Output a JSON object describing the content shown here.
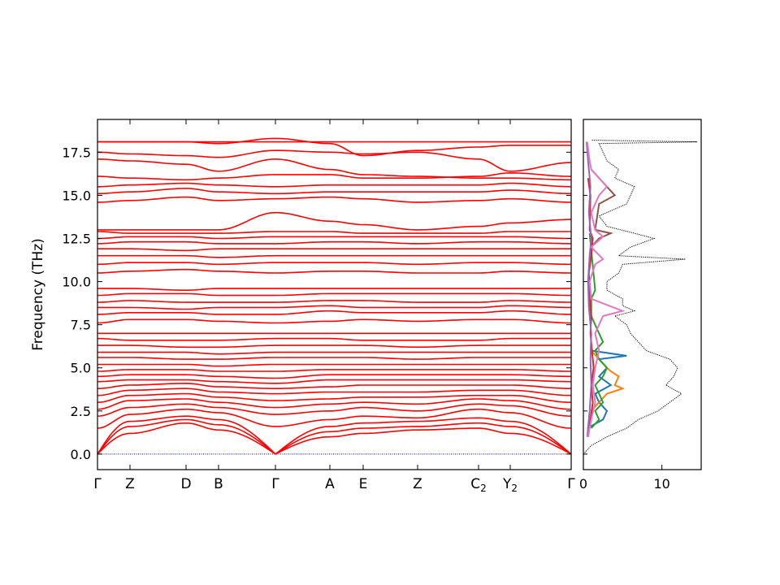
{
  "chart_data": [
    {
      "type": "line",
      "title": "",
      "xlabel": "",
      "ylabel": "Frequency (THz)",
      "ylim": [
        -0.9,
        19.4
      ],
      "yticks": [
        "0.0",
        "2.5",
        "5.0",
        "7.5",
        "10.0",
        "12.5",
        "15.0",
        "17.5"
      ],
      "ytick_values": [
        0,
        2.5,
        5,
        7.5,
        10,
        12.5,
        15,
        17.5
      ],
      "xticks": [
        {
          "label": "Γ",
          "sub": ""
        },
        {
          "label": "Z",
          "sub": ""
        },
        {
          "label": "D",
          "sub": ""
        },
        {
          "label": "B",
          "sub": ""
        },
        {
          "label": "Γ",
          "sub": ""
        },
        {
          "label": "A",
          "sub": ""
        },
        {
          "label": "E",
          "sub": ""
        },
        {
          "label": "Z",
          "sub": ""
        },
        {
          "label": "C",
          "sub": "2"
        },
        {
          "label": "Y",
          "sub": "2"
        },
        {
          "label": "Γ",
          "sub": ""
        }
      ],
      "band_color": "#ff0000",
      "zero_line_color": "#0000cc",
      "segment_breaks": [
        0,
        4,
        10
      ],
      "band_values_at_kpoints": [
        {
          "name": "band-1",
          "values": [
            0,
            1.2,
            1.8,
            1.4,
            0,
            1.0,
            1.2,
            1.4,
            1.5,
            1.2,
            0
          ]
        },
        {
          "name": "band-2",
          "values": [
            0,
            1.6,
            2.0,
            1.7,
            0,
            1.3,
            1.5,
            1.6,
            1.8,
            1.6,
            0
          ]
        },
        {
          "name": "band-3",
          "values": [
            0,
            1.9,
            2.2,
            2.0,
            0,
            1.6,
            1.8,
            1.9,
            2.1,
            1.9,
            0
          ]
        },
        {
          "name": "band-4",
          "values": [
            1.5,
            2.3,
            2.6,
            2.4,
            1.6,
            2.0,
            2.2,
            2.1,
            2.6,
            2.4,
            1.5
          ]
        },
        {
          "name": "band-5",
          "values": [
            2.2,
            2.7,
            2.9,
            2.7,
            2.3,
            2.5,
            2.7,
            2.5,
            2.9,
            2.8,
            2.2
          ]
        },
        {
          "name": "band-6",
          "values": [
            2.6,
            3.1,
            3.2,
            3.0,
            2.7,
            2.9,
            3.0,
            2.9,
            3.2,
            3.1,
            2.6
          ]
        },
        {
          "name": "band-7",
          "values": [
            3.0,
            3.4,
            3.5,
            3.3,
            3.1,
            3.2,
            3.3,
            3.3,
            3.4,
            3.4,
            3.0
          ]
        },
        {
          "name": "band-8",
          "values": [
            3.4,
            3.7,
            3.8,
            3.6,
            3.5,
            3.6,
            3.6,
            3.6,
            3.7,
            3.7,
            3.4
          ]
        },
        {
          "name": "band-9",
          "values": [
            3.8,
            4.0,
            4.1,
            3.9,
            3.8,
            3.9,
            4.0,
            4.0,
            4.0,
            4.0,
            3.8
          ]
        },
        {
          "name": "band-10",
          "values": [
            4.2,
            4.3,
            4.3,
            4.2,
            4.1,
            4.3,
            4.3,
            4.3,
            4.3,
            4.3,
            4.2
          ]
        },
        {
          "name": "band-11",
          "values": [
            4.5,
            4.6,
            4.6,
            4.5,
            4.4,
            4.6,
            4.6,
            4.6,
            4.6,
            4.6,
            4.5
          ]
        },
        {
          "name": "band-12",
          "values": [
            4.8,
            4.9,
            4.9,
            4.8,
            4.8,
            4.9,
            4.9,
            4.9,
            4.9,
            4.9,
            4.8
          ]
        },
        {
          "name": "band-13",
          "values": [
            5.2,
            5.2,
            5.2,
            5.1,
            5.2,
            5.2,
            5.2,
            5.2,
            5.2,
            5.2,
            5.2
          ]
        },
        {
          "name": "band-14",
          "values": [
            5.6,
            5.6,
            5.5,
            5.5,
            5.6,
            5.6,
            5.6,
            5.5,
            5.6,
            5.6,
            5.6
          ]
        },
        {
          "name": "band-15",
          "values": [
            5.9,
            5.9,
            5.9,
            5.8,
            5.9,
            5.9,
            5.9,
            5.9,
            5.9,
            5.9,
            5.9
          ]
        },
        {
          "name": "band-16",
          "values": [
            6.3,
            6.3,
            6.2,
            6.2,
            6.3,
            6.3,
            6.3,
            6.2,
            6.3,
            6.3,
            6.3
          ]
        },
        {
          "name": "band-17",
          "values": [
            6.7,
            6.6,
            6.6,
            6.6,
            6.7,
            6.7,
            6.6,
            6.6,
            6.6,
            6.7,
            6.7
          ]
        },
        {
          "name": "band-18",
          "values": [
            7.0,
            7.0,
            7.0,
            7.0,
            7.0,
            7.0,
            7.0,
            7.0,
            7.0,
            7.0,
            7.0
          ]
        },
        {
          "name": "band-19",
          "values": [
            7.6,
            7.8,
            7.8,
            7.7,
            7.6,
            7.7,
            7.8,
            7.7,
            7.8,
            7.8,
            7.6
          ]
        },
        {
          "name": "band-20",
          "values": [
            8.1,
            8.2,
            8.2,
            8.1,
            8.1,
            8.3,
            8.2,
            8.2,
            8.2,
            8.3,
            8.1
          ]
        },
        {
          "name": "band-21",
          "values": [
            8.5,
            8.5,
            8.4,
            8.5,
            8.5,
            8.6,
            8.5,
            8.5,
            8.5,
            8.6,
            8.5
          ]
        },
        {
          "name": "band-22",
          "values": [
            8.8,
            8.9,
            8.8,
            8.8,
            8.8,
            8.9,
            8.9,
            8.8,
            8.8,
            8.9,
            8.8
          ]
        },
        {
          "name": "band-23",
          "values": [
            9.2,
            9.3,
            9.3,
            9.2,
            9.2,
            9.3,
            9.3,
            9.3,
            9.3,
            9.3,
            9.2
          ]
        },
        {
          "name": "band-24",
          "values": [
            9.6,
            9.6,
            9.5,
            9.6,
            9.6,
            9.6,
            9.6,
            9.6,
            9.6,
            9.6,
            9.6
          ]
        },
        {
          "name": "band-25",
          "values": [
            10.5,
            10.6,
            10.7,
            10.6,
            10.5,
            10.6,
            10.6,
            10.5,
            10.5,
            10.6,
            10.5
          ]
        },
        {
          "name": "band-26",
          "values": [
            11.0,
            11.1,
            11.1,
            11.0,
            11.1,
            11.1,
            11.1,
            11.0,
            11.1,
            11.1,
            11.0
          ]
        },
        {
          "name": "band-27",
          "values": [
            11.5,
            11.5,
            11.5,
            11.4,
            11.5,
            11.5,
            11.5,
            11.5,
            11.5,
            11.5,
            11.5
          ]
        },
        {
          "name": "band-28",
          "values": [
            11.9,
            11.9,
            11.8,
            11.9,
            11.9,
            11.9,
            11.9,
            11.9,
            11.9,
            11.9,
            11.9
          ]
        },
        {
          "name": "band-29",
          "values": [
            12.2,
            12.3,
            12.3,
            12.2,
            12.2,
            12.3,
            12.3,
            12.2,
            12.3,
            12.3,
            12.2
          ]
        },
        {
          "name": "band-30",
          "values": [
            12.5,
            12.6,
            12.6,
            12.5,
            12.6,
            12.6,
            12.6,
            12.6,
            12.6,
            12.6,
            12.5
          ]
        },
        {
          "name": "band-31",
          "values": [
            12.9,
            12.8,
            12.8,
            12.8,
            12.9,
            12.9,
            12.8,
            12.8,
            12.8,
            12.9,
            12.9
          ]
        },
        {
          "name": "band-32",
          "values": [
            13.0,
            13.0,
            13.0,
            13.0,
            14.0,
            13.5,
            13.3,
            13.0,
            13.2,
            13.4,
            13.6
          ]
        },
        {
          "name": "band-33",
          "values": [
            14.6,
            14.7,
            14.9,
            14.7,
            14.8,
            14.9,
            14.8,
            14.6,
            14.7,
            14.8,
            14.6
          ]
        },
        {
          "name": "band-34",
          "values": [
            15.1,
            15.2,
            15.4,
            15.2,
            15.1,
            15.2,
            15.2,
            15.2,
            15.2,
            15.3,
            15.1
          ]
        },
        {
          "name": "band-35",
          "values": [
            15.5,
            15.6,
            15.7,
            15.6,
            15.5,
            15.6,
            15.6,
            15.6,
            15.6,
            15.7,
            15.5
          ]
        },
        {
          "name": "band-36",
          "values": [
            16.1,
            16.0,
            15.9,
            16.0,
            16.2,
            16.2,
            16.0,
            16.0,
            16.1,
            16.3,
            16.1
          ]
        },
        {
          "name": "band-37",
          "values": [
            17.1,
            17.0,
            16.8,
            16.4,
            17.1,
            16.5,
            16.2,
            16.1,
            16.0,
            16.0,
            15.9
          ]
        },
        {
          "name": "band-38",
          "values": [
            17.5,
            17.4,
            17.3,
            17.2,
            17.6,
            17.5,
            17.4,
            17.5,
            17.1,
            16.4,
            16.9
          ]
        },
        {
          "name": "band-39",
          "values": [
            18.1,
            18.1,
            18.1,
            18.0,
            18.3,
            18.0,
            17.3,
            17.6,
            17.8,
            17.9,
            17.9
          ]
        },
        {
          "name": "band-40",
          "values": [
            18.1,
            18.1,
            18.1,
            18.1,
            18.1,
            18.1,
            18.1,
            18.1,
            18.1,
            18.1,
            18.1
          ]
        }
      ]
    },
    {
      "type": "line",
      "title": "",
      "xlabel": "",
      "ylabel": "",
      "xlim": [
        0,
        15
      ],
      "ylim": [
        -0.9,
        19.4
      ],
      "xticks": [
        "0",
        "10"
      ],
      "xtick_values": [
        0,
        10
      ],
      "total_dos": {
        "style": "dotted",
        "color": "#000000",
        "y": [
          0,
          0.5,
          1.0,
          1.5,
          2.0,
          2.5,
          3.0,
          3.5,
          4.0,
          4.5,
          5.0,
          5.5,
          6.0,
          6.5,
          7.0,
          7.5,
          8.0,
          8.3,
          8.6,
          9.0,
          9.5,
          10.0,
          10.5,
          11.0,
          11.3,
          11.5,
          12.0,
          12.5,
          12.8,
          13.2,
          13.8,
          14.5,
          15.0,
          15.5,
          16.0,
          16.5,
          17.0,
          17.5,
          18.0,
          18.1,
          18.2
        ],
        "x": [
          0,
          1.0,
          3.0,
          5.5,
          7.0,
          9.5,
          11.0,
          12.5,
          10.5,
          11.5,
          12.0,
          11.0,
          8.0,
          7.0,
          6.0,
          5.5,
          4.0,
          6.5,
          5.0,
          5.0,
          3.0,
          3.0,
          4.5,
          5.0,
          13.0,
          4.5,
          6.0,
          9.0,
          6.5,
          3.0,
          2.0,
          5.5,
          6.0,
          6.5,
          4.0,
          4.5,
          3.0,
          2.5,
          2.0,
          14.5,
          1.0
        ]
      },
      "series": [
        {
          "color": "#1f77b4",
          "y": [
            1.5,
            2.0,
            2.5,
            3.0,
            3.5,
            4.0,
            4.5,
            5.0,
            5.5,
            5.7,
            6.0
          ],
          "x": [
            0.5,
            2.5,
            3.0,
            2.0,
            1.5,
            3.5,
            2.0,
            3.0,
            2.0,
            5.5,
            1.0
          ]
        },
        {
          "color": "#ff7f0e",
          "y": [
            2.5,
            3.0,
            3.5,
            3.8,
            4.0,
            4.5,
            4.8,
            5.0,
            5.5,
            6.0
          ],
          "x": [
            1.0,
            2.0,
            3.0,
            5.0,
            4.0,
            4.5,
            3.5,
            3.0,
            2.0,
            1.0
          ]
        },
        {
          "color": "#2ca02c",
          "y": [
            1.5,
            2.0,
            2.5,
            3.0,
            3.5,
            4.0,
            4.5,
            5.0,
            5.5,
            6.0,
            6.5,
            7.0,
            7.5,
            8.0,
            9.0,
            9.5,
            12.8
          ],
          "x": [
            1.0,
            2.0,
            1.5,
            2.5,
            2.0,
            1.5,
            2.5,
            3.0,
            2.0,
            1.5,
            2.5,
            2.0,
            1.5,
            1.0,
            1.0,
            1.5,
            0.8
          ]
        },
        {
          "color": "#d62728",
          "y": [
            1.0,
            2.0,
            3.0,
            4.0,
            5.0,
            6.0,
            7.0,
            8.0,
            9.0,
            10.5,
            11.5,
            12.5,
            13.0,
            15.0,
            16.0
          ],
          "x": [
            0.6,
            0.9,
            1.2,
            1.0,
            1.3,
            1.1,
            0.9,
            1.0,
            0.8,
            0.7,
            1.0,
            1.2,
            0.8,
            0.9,
            0.6
          ]
        },
        {
          "color": "#9467bd",
          "y": [
            1.0,
            2.5,
            4.0,
            5.5,
            7.0,
            8.5,
            10.0,
            11.5,
            12.5,
            14.0,
            15.5,
            17.0,
            18.1
          ],
          "x": [
            0.5,
            0.8,
            1.0,
            0.9,
            1.0,
            0.7,
            0.6,
            0.8,
            1.0,
            0.7,
            0.9,
            0.6,
            0.4
          ]
        },
        {
          "color": "#8c564b",
          "y": [
            12.0,
            12.5,
            12.8,
            13.0,
            14.5,
            15.0,
            15.5,
            16.0,
            16.5
          ],
          "x": [
            1.0,
            2.0,
            3.5,
            1.5,
            2.0,
            4.0,
            3.0,
            2.0,
            1.0
          ]
        },
        {
          "color": "#e377c2",
          "y": [
            1.0,
            2.0,
            3.0,
            4.0,
            5.0,
            6.0,
            7.0,
            8.0,
            8.3,
            9.0,
            10.0,
            11.0,
            11.3,
            12.0,
            12.6,
            13.0,
            14.0,
            15.0,
            15.5,
            16.0,
            16.5,
            17.0,
            18.1
          ],
          "x": [
            0.6,
            1.0,
            1.5,
            1.2,
            1.5,
            2.0,
            1.5,
            2.5,
            5.0,
            1.0,
            0.8,
            1.5,
            2.5,
            1.0,
            2.5,
            1.5,
            1.0,
            2.0,
            3.0,
            2.0,
            1.0,
            0.8,
            0.5
          ]
        }
      ]
    }
  ]
}
